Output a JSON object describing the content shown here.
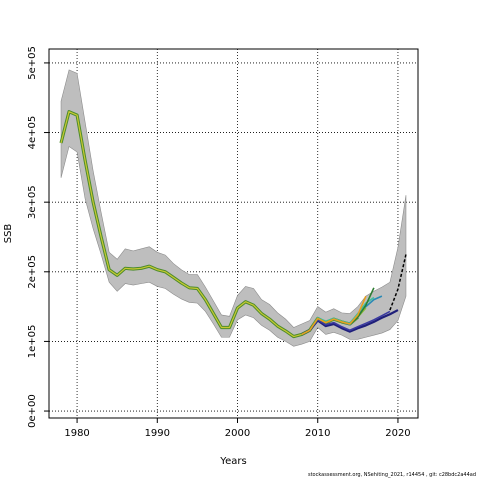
{
  "chart_data": {
    "type": "line",
    "xlabel": "Years",
    "ylabel": "SSB",
    "xlim": [
      1976.5,
      2022.5
    ],
    "ylim": [
      -10000,
      520000
    ],
    "x_ticks": [
      1980,
      1990,
      2000,
      2010,
      2020
    ],
    "y_ticks": [
      0,
      100000,
      200000,
      300000,
      400000,
      500000
    ],
    "y_tick_labels": [
      "0e+00",
      "1e+05",
      "2e+05",
      "3e+05",
      "4e+05",
      "5e+05"
    ],
    "grid": true,
    "colors": {
      "band": "#bebebe",
      "band_edge": "#8c8c8c",
      "main": "#4c8c2b",
      "main_highlight": "#c8c832",
      "retro": [
        "#1f1f7a",
        "#3a3aa0",
        "#2a8ab5",
        "#3dbfa0",
        "#8bbd3a",
        "#2e7d32",
        "#e6a020"
      ],
      "forecast": "#000000"
    },
    "series_main": {
      "x": [
        1978,
        1979,
        1980,
        1981,
        1982,
        1983,
        1984,
        1985,
        1986,
        1987,
        1988,
        1989,
        1990,
        1991,
        1992,
        1993,
        1994,
        1995,
        1996,
        1997,
        1998,
        1999,
        2000,
        2001,
        2002,
        2003,
        2004,
        2005,
        2006,
        2007,
        2008,
        2009,
        2010,
        2011,
        2012,
        2013,
        2014,
        2015
      ],
      "y": [
        385000,
        430000,
        425000,
        360000,
        300000,
        250000,
        203000,
        195000,
        205000,
        204000,
        205000,
        208000,
        203000,
        200000,
        192000,
        184000,
        177000,
        176000,
        160000,
        140000,
        120000,
        120000,
        148000,
        157000,
        152000,
        140000,
        132000,
        122000,
        115000,
        107000,
        110000,
        116000,
        133000,
        127000,
        132000,
        128000,
        125000,
        135000
      ]
    },
    "band": {
      "x": [
        1978,
        1979,
        1980,
        1981,
        1982,
        1983,
        1984,
        1985,
        1986,
        1987,
        1988,
        1989,
        1990,
        1991,
        1992,
        1993,
        1994,
        1995,
        1996,
        1997,
        1998,
        1999,
        2000,
        2001,
        2002,
        2003,
        2004,
        2005,
        2006,
        2007,
        2008,
        2009,
        2010,
        2011,
        2012,
        2013,
        2014,
        2015,
        2016,
        2017,
        2018,
        2019,
        2020,
        2021
      ],
      "upper": [
        445000,
        490000,
        485000,
        415000,
        345000,
        285000,
        228000,
        218000,
        233000,
        230000,
        233000,
        236000,
        228000,
        224000,
        212000,
        203000,
        196000,
        196000,
        178000,
        158000,
        138000,
        136000,
        166000,
        179000,
        176000,
        160000,
        153000,
        141000,
        132000,
        120000,
        125000,
        130000,
        150000,
        142000,
        147000,
        141000,
        140000,
        150000,
        165000,
        172000,
        178000,
        185000,
        235000,
        310000
      ],
      "lower": [
        335000,
        380000,
        372000,
        305000,
        262000,
        225000,
        185000,
        172000,
        183000,
        181000,
        183000,
        185000,
        179000,
        176000,
        168000,
        161000,
        156000,
        155000,
        143000,
        125000,
        106000,
        106000,
        131000,
        138000,
        134000,
        123000,
        116000,
        106000,
        100000,
        93000,
        96000,
        100000,
        120000,
        110000,
        113000,
        109000,
        103000,
        103000,
        106000,
        109000,
        112000,
        117000,
        130000,
        165000
      ]
    },
    "series": [
      {
        "x": [
          2008,
          2009,
          2010,
          2011,
          2012,
          2013,
          2014,
          2015,
          2016,
          2017,
          2018,
          2019,
          2020
        ],
        "y": [
          110000,
          116000,
          130000,
          122000,
          125000,
          119000,
          114000,
          119000,
          123000,
          128000,
          134000,
          139000,
          145000
        ]
      },
      {
        "x": [
          2008,
          2009,
          2010,
          2011,
          2012,
          2013,
          2014,
          2015,
          2016,
          2017,
          2018,
          2019
        ],
        "y": [
          110000,
          116000,
          131000,
          124000,
          127000,
          121000,
          116000,
          121000,
          126000,
          131000,
          137000,
          143000
        ]
      },
      {
        "x": [
          2008,
          2009,
          2010,
          2011,
          2012,
          2013,
          2014,
          2015,
          2016,
          2017,
          2018
        ],
        "y": [
          110000,
          116000,
          133000,
          128000,
          132000,
          128000,
          124000,
          138000,
          150000,
          160000,
          165000
        ]
      },
      {
        "x": [
          2008,
          2009,
          2010,
          2011,
          2012,
          2013,
          2014,
          2015,
          2016,
          2017
        ],
        "y": [
          110000,
          116000,
          134000,
          129000,
          133000,
          129000,
          126000,
          140000,
          155000,
          163000
        ]
      },
      {
        "x": [
          2008,
          2009,
          2010,
          2011,
          2012,
          2013,
          2014,
          2015,
          2016
        ],
        "y": [
          110000,
          116000,
          133000,
          127000,
          132000,
          128000,
          125000,
          135000,
          148000
        ]
      },
      {
        "x": [
          2008,
          2009,
          2010,
          2011,
          2012,
          2013,
          2014,
          2015,
          2016,
          2017
        ],
        "y": [
          110000,
          116000,
          133000,
          127000,
          132000,
          128000,
          125000,
          135000,
          152000,
          177000
        ]
      },
      {
        "x": [
          2008,
          2009,
          2010,
          2011,
          2012,
          2013,
          2014,
          2015,
          2016
        ],
        "y": [
          110000,
          116000,
          133000,
          127000,
          132000,
          128000,
          125000,
          138000,
          165000
        ]
      }
    ],
    "forecast": {
      "x": [
        2019,
        2020,
        2021
      ],
      "y": [
        145000,
        175000,
        225000
      ]
    }
  },
  "footer": "stockassessment.org, NSehiting_2021, r14454 , git: c28bdc2a44ad"
}
